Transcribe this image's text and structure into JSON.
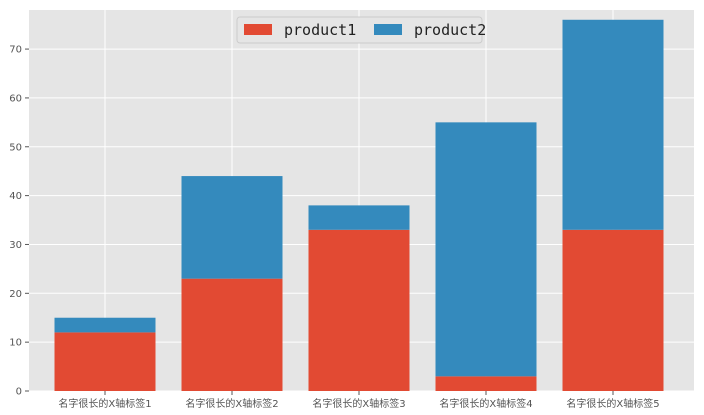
{
  "chart_data": {
    "type": "bar",
    "stacked": true,
    "categories": [
      "名字很长的X轴标签1",
      "名字很长的X轴标签2",
      "名字很长的X轴标签3",
      "名字很长的X轴标签4",
      "名字很长的X轴标签5"
    ],
    "series": [
      {
        "name": "product1",
        "values": [
          12,
          23,
          33,
          3,
          33
        ],
        "color": "#E24A33"
      },
      {
        "name": "product2",
        "values": [
          3,
          21,
          5,
          52,
          43
        ],
        "color": "#348ABD"
      }
    ],
    "ylim": [
      0,
      78
    ],
    "yticks": [
      0,
      10,
      20,
      30,
      40,
      50,
      60,
      70
    ],
    "grid": true,
    "legend_position": "top-center",
    "background": "#E5E5E5",
    "grid_color": "#FFFFFF"
  }
}
